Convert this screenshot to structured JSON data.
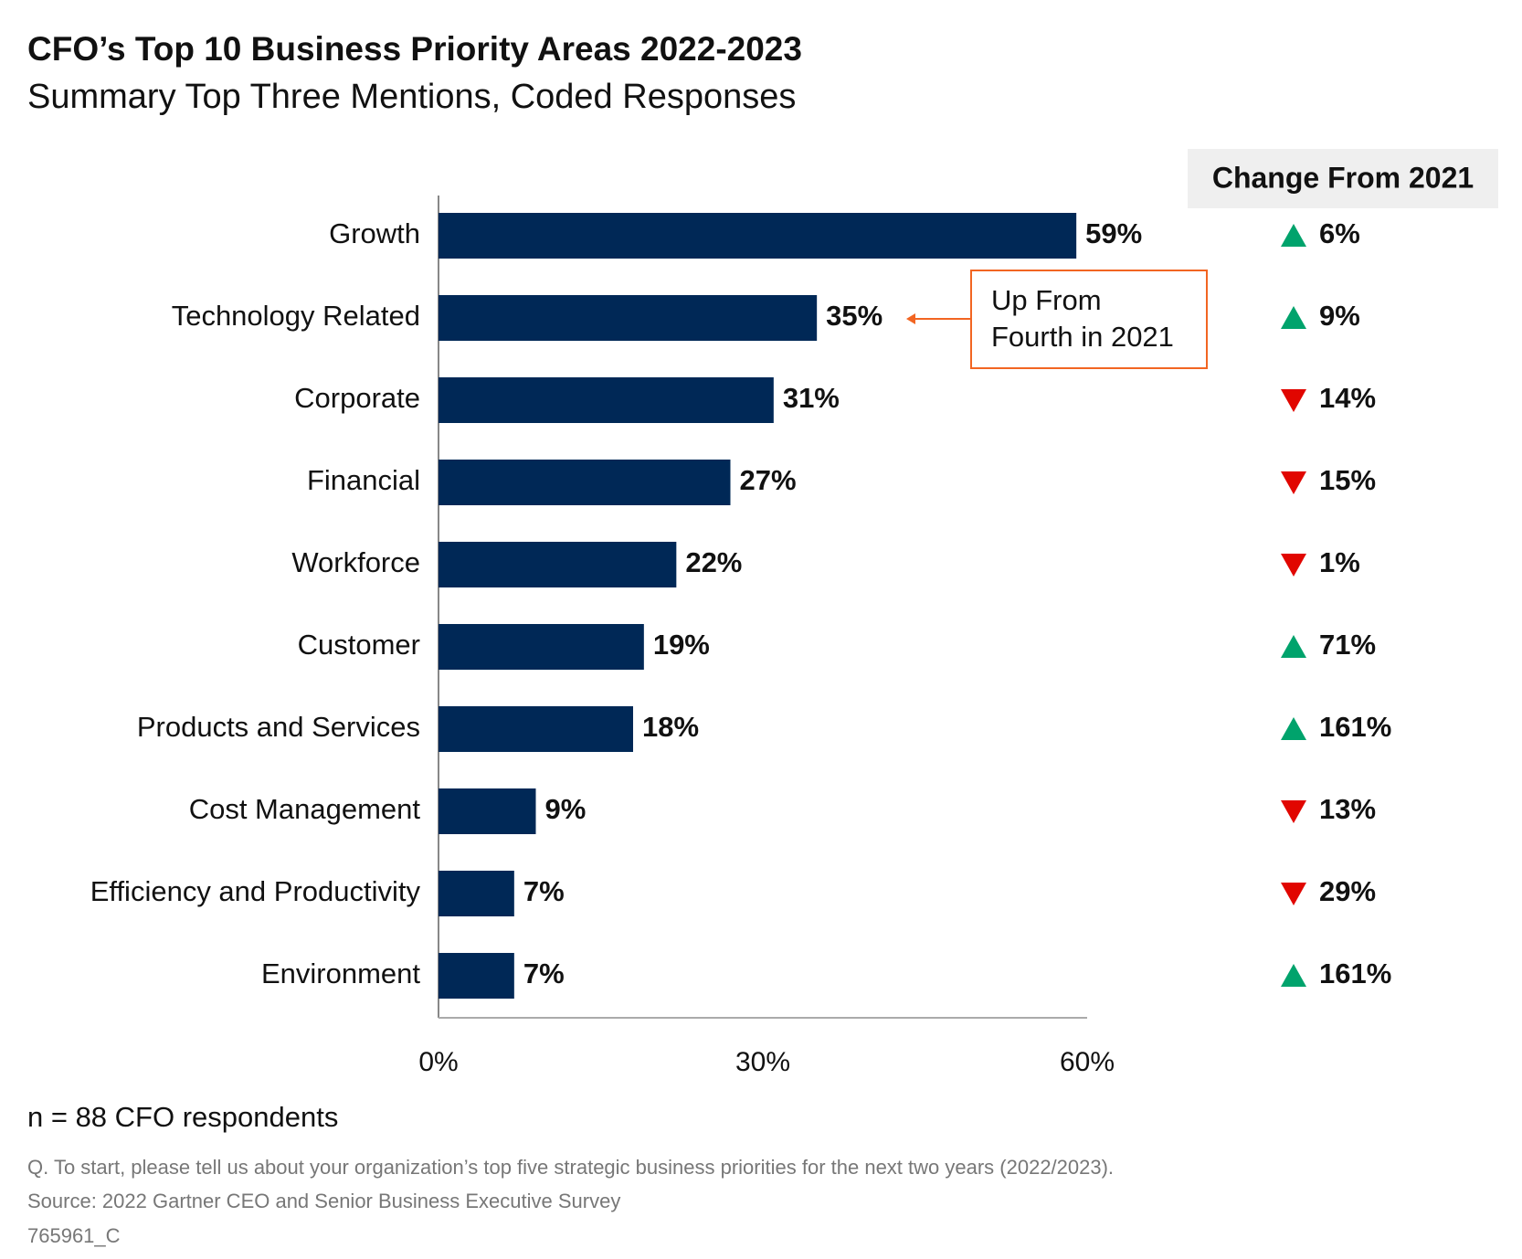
{
  "chart_data": {
    "type": "bar",
    "orientation": "horizontal",
    "title": "CFO’s Top 10 Business Priority Areas 2022-2023",
    "subtitle": "Summary Top Three Mentions, Coded Responses",
    "categories": [
      "Growth",
      "Technology Related",
      "Corporate",
      "Financial",
      "Workforce",
      "Customer",
      "Products and Services",
      "Cost Management",
      "Efficiency and Productivity",
      "Environment"
    ],
    "values": [
      59,
      35,
      31,
      27,
      22,
      19,
      18,
      9,
      7,
      7
    ],
    "value_labels": [
      "59%",
      "35%",
      "31%",
      "27%",
      "22%",
      "19%",
      "18%",
      "9%",
      "7%",
      "7%"
    ],
    "color": "#002856",
    "xlim": [
      0,
      60
    ],
    "xticks": [
      {
        "value": 0,
        "label": "0%"
      },
      {
        "value": 30,
        "label": "30%"
      },
      {
        "value": 60,
        "label": "60%"
      }
    ],
    "annotation": [
      "Up From",
      "Fourth in 2021"
    ],
    "change": {
      "title": "Change From 2021",
      "values": [
        6,
        9,
        14,
        15,
        1,
        71,
        161,
        13,
        29,
        161
      ],
      "value_labels": [
        "6%",
        "9%",
        "14%",
        "15%",
        "1%",
        "71%",
        "161%",
        "13%",
        "29%",
        "161%"
      ],
      "directions": [
        "up",
        "up",
        "down",
        "down",
        "down",
        "up",
        "up",
        "down",
        "down",
        "up"
      ],
      "up_color": "#00a36c",
      "down_color": "#e10600"
    },
    "note": "n = 88 CFO respondents",
    "question": "Q. To start, please tell us about your organization’s top five strategic business priorities for the next two years (2022/2023).",
    "source": "Source: 2022 Gartner CEO and Senior Business Executive Survey",
    "id": "765961_C"
  }
}
